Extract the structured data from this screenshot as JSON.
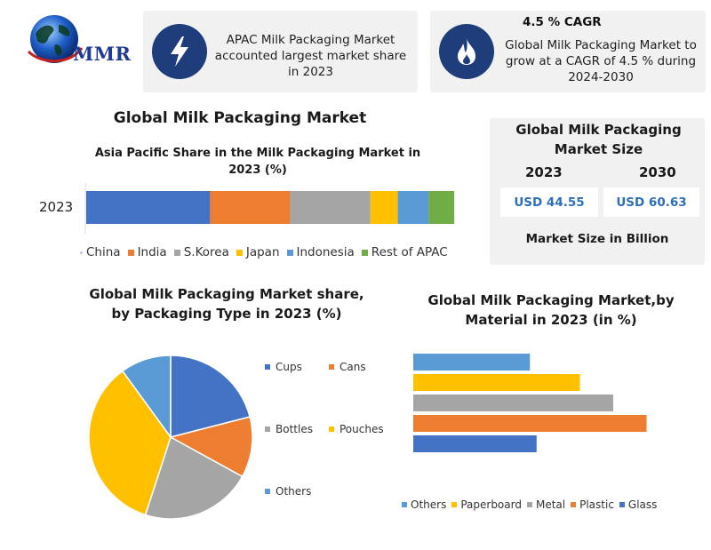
{
  "logo": {
    "text": "MMR"
  },
  "info1": {
    "text": "APAC Milk Packaging Market accounted largest market share in 2023"
  },
  "info2": {
    "title": "4.5 % CAGR",
    "text": "Global Milk Packaging Market to grow at a CAGR of 4.5 % during 2024-2030"
  },
  "main_title": "Global Milk Packaging  Market",
  "size_box": {
    "title": "Global Milk Packaging Market Size",
    "year1": "2023",
    "year2": "2030",
    "val1": "USD 44.55",
    "val2": "USD 60.63",
    "footer": "Market Size in Billion"
  },
  "colors": {
    "china": "#4472c4",
    "india": "#ed7d31",
    "skorea": "#a5a5a5",
    "japan": "#ffc000",
    "indonesia": "#5b9bd5",
    "rest": "#70ad47",
    "glass": "#4472c4",
    "plastic": "#ed7d31",
    "metal": "#a5a5a5",
    "paperboard": "#ffc000",
    "others": "#5b9bd5",
    "dark_blue": "#1e3d7a"
  },
  "chart_data": [
    {
      "type": "bar",
      "orientation": "horizontal-stacked",
      "title": "Asia Pacific Share in the Milk Packaging Market in 2023 (%)",
      "categories": [
        "2023"
      ],
      "series": [
        {
          "name": "China",
          "values": [
            34
          ]
        },
        {
          "name": "India",
          "values": [
            22
          ]
        },
        {
          "name": "S.Korea",
          "values": [
            22
          ]
        },
        {
          "name": "Japan",
          "values": [
            7.5
          ]
        },
        {
          "name": "Indonesia",
          "values": [
            8.5
          ]
        },
        {
          "name": "Rest of APAC",
          "values": [
            7
          ]
        }
      ],
      "legend": "bottom"
    },
    {
      "type": "pie",
      "title_line1": "Global Milk Packaging Market share,",
      "title_line2": "by Packaging Type  in 2023  (%)",
      "labels": [
        "Cups",
        "Cans",
        "Bottles",
        "Pouches",
        "Others"
      ],
      "values": [
        21,
        12,
        22,
        35,
        10
      ],
      "legend": "right"
    },
    {
      "type": "bar",
      "orientation": "horizontal",
      "title_line1": "Global Milk Packaging Market,by",
      "title_line2": "Material in 2023 (in %)",
      "categories": [
        "Others",
        "Paperboard",
        "Metal",
        "Plastic",
        "Glass"
      ],
      "values": [
        17.5,
        25,
        30,
        35,
        18.5
      ],
      "legend": "bottom"
    }
  ]
}
